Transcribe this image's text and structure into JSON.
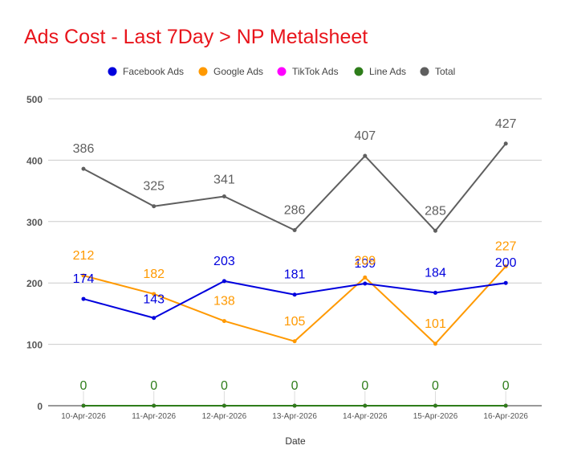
{
  "chart_data": {
    "type": "line",
    "title": "Ads Cost - Last 7Day > NP Metalsheet",
    "xlabel": "Date",
    "ylabel": "",
    "ylim": [
      0,
      500
    ],
    "yticks": [
      0,
      100,
      200,
      300,
      400,
      500
    ],
    "grid": true,
    "legend_position": "top",
    "categories": [
      "10-Apr-2026",
      "11-Apr-2026",
      "12-Apr-2026",
      "13-Apr-2026",
      "14-Apr-2026",
      "15-Apr-2026",
      "16-Apr-2026"
    ],
    "series": [
      {
        "name": "Facebook Ads",
        "color": "#0000dd",
        "values": [
          174,
          143,
          203,
          181,
          199,
          184,
          200
        ],
        "show_labels": true
      },
      {
        "name": "Google Ads",
        "color": "#ff9900",
        "values": [
          212,
          182,
          138,
          105,
          209,
          101,
          227
        ],
        "show_labels": true,
        "label_texts": [
          "212",
          "182",
          "138",
          "105",
          "209",
          "101",
          "227"
        ]
      },
      {
        "name": "TikTok Ads",
        "color": "#ff00ff",
        "values": [
          0,
          0,
          0,
          0,
          0,
          0,
          0
        ],
        "show_labels": false
      },
      {
        "name": "Line Ads",
        "color": "#2e7d1a",
        "values": [
          0,
          0,
          0,
          0,
          0,
          0,
          0
        ],
        "show_labels": true
      },
      {
        "name": "Total",
        "color": "#5f5f5f",
        "values": [
          386,
          325,
          341,
          286,
          407,
          285,
          427
        ],
        "show_labels": true
      }
    ]
  },
  "colors": {
    "title": "#e8141b",
    "axis_text": "#555555",
    "grid": "#cccccc"
  }
}
